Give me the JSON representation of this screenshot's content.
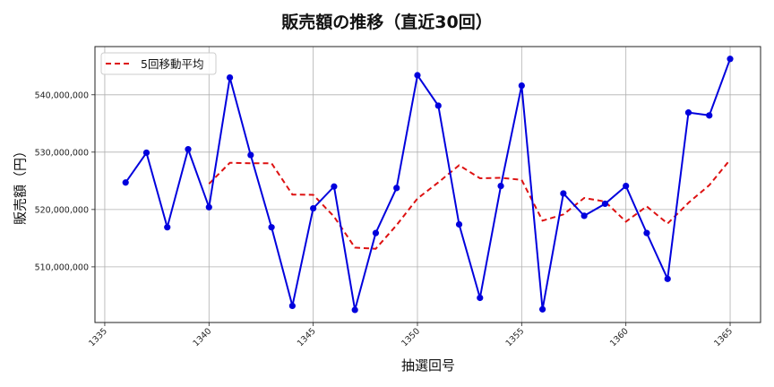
{
  "chart_data": {
    "type": "line",
    "title": "販売額の推移（直近30回）",
    "xlabel": "抽選回号",
    "ylabel": "販売額（円）",
    "x": [
      1336,
      1337,
      1338,
      1339,
      1340,
      1341,
      1342,
      1343,
      1344,
      1345,
      1346,
      1347,
      1348,
      1349,
      1350,
      1351,
      1352,
      1353,
      1354,
      1355,
      1356,
      1357,
      1358,
      1359,
      1360,
      1361,
      1362,
      1363,
      1364,
      1365
    ],
    "series": [
      {
        "name": "販売額",
        "color": "#0000dd",
        "style": "solid-with-markers",
        "values": [
          524700000,
          529900000,
          516900000,
          530500000,
          520400000,
          543000000,
          529500000,
          516900000,
          503200000,
          520200000,
          524000000,
          502500000,
          515900000,
          523750000,
          543400000,
          538100000,
          517400000,
          504600000,
          524100000,
          541600000,
          502600000,
          522800000,
          518900000,
          521000000,
          524100000,
          515900000,
          507900000,
          536900000,
          536400000,
          546250000
        ]
      },
      {
        "name": "5回移動平均",
        "color": "#dd1111",
        "style": "dashed",
        "x_start": 1340,
        "values": [
          524480000,
          528140000,
          528060000,
          528060000,
          522600000,
          522560000,
          518760000,
          513360000,
          513160000,
          517270000,
          521910000,
          524730000,
          527710000,
          525450000,
          525520000,
          525160000,
          518060000,
          519140000,
          522000000,
          521380000,
          517880000,
          520540000,
          517560000,
          521160000,
          524240000,
          528670000
        ]
      }
    ],
    "xticks": [
      1335,
      1340,
      1345,
      1350,
      1355,
      1360,
      1365
    ],
    "yticks": [
      510000000,
      520000000,
      530000000,
      540000000
    ],
    "ytick_labels": [
      "510,000,000",
      "520,000,000",
      "530,000,000",
      "540,000,000"
    ],
    "xlim": [
      1334.53,
      1366.46
    ],
    "ylim": [
      500300000,
      548400000
    ],
    "grid": true,
    "legend": {
      "position": "upper left",
      "entries": [
        "5回移動平均"
      ]
    }
  }
}
